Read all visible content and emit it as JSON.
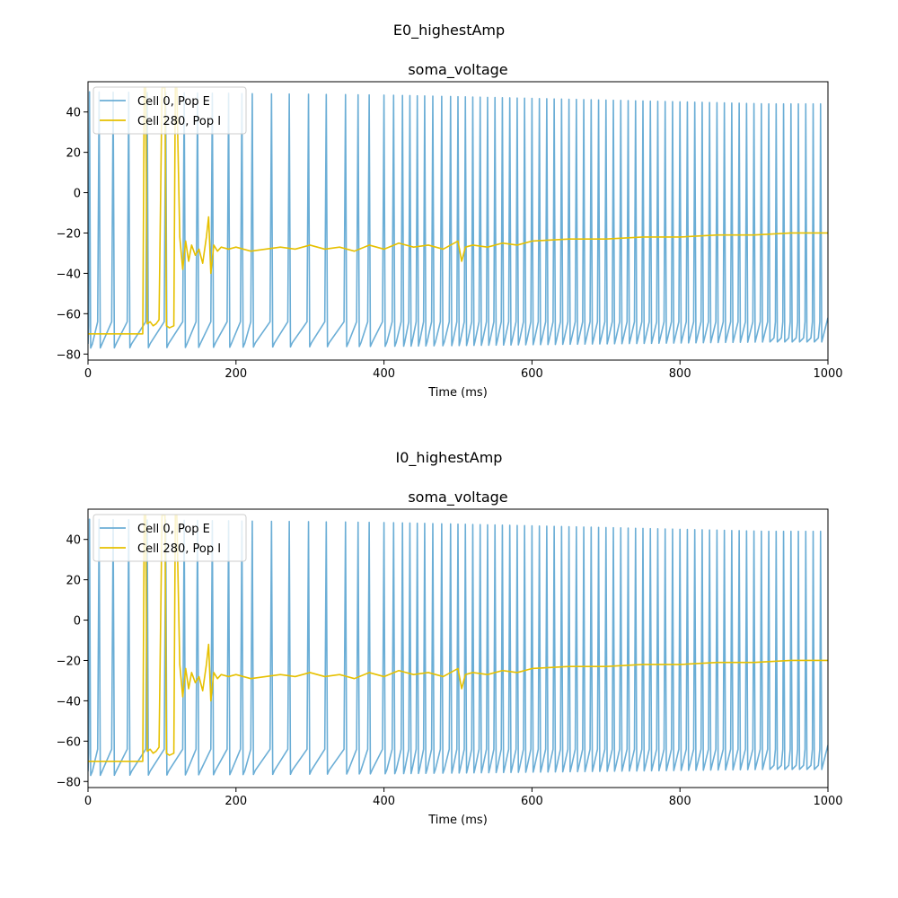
{
  "figures": [
    {
      "suptitle": "E0_highestAmp",
      "chart_data": {
        "type": "line",
        "title": "soma_voltage",
        "xlabel": "Time (ms)",
        "ylabel": "",
        "xlim": [
          0,
          1000
        ],
        "ylim": [
          -83,
          55
        ],
        "xticks": [
          0,
          200,
          400,
          600,
          800,
          1000
        ],
        "yticks": [
          -80,
          -60,
          -40,
          -20,
          0,
          20,
          40
        ],
        "grid": false,
        "legend_position": "top-left",
        "series": [
          {
            "name": "Cell 0, Pop E",
            "color": "#6baed6",
            "kind": "spikes",
            "spike_times": [
              2,
              15,
              34,
              55,
              80,
              105,
              130,
              148,
              168,
              190,
              208,
              222,
              248,
              272,
              298,
              322,
              348,
              365,
              380,
              400,
              413,
              425,
              435,
              445,
              455,
              466,
              478,
              490,
              500,
              510,
              520,
              530,
              540,
              550,
              560,
              570,
              580,
              590,
              600,
              610,
              620,
              630,
              640,
              650,
              660,
              670,
              680,
              690,
              700,
              710,
              720,
              730,
              740,
              750,
              760,
              770,
              780,
              790,
              800,
              810,
              820,
              830,
              840,
              850,
              860,
              870,
              880,
              890,
              900,
              910,
              920
            ],
            "peak_start": 50,
            "peak_end": 44,
            "trough_start": -77,
            "trough_end": -74
          },
          {
            "name": "Cell 280, Pop I",
            "color": "#e6c000",
            "kind": "trace",
            "x": [
              0,
              74,
              76,
              78,
              80,
              84,
              88,
              92,
              96,
              100,
              104,
              106,
              110,
              116,
              118,
              120,
              124,
              128,
              132,
              136,
              140,
              145,
              150,
              155,
              160,
              163,
              166,
              170,
              175,
              180,
              190,
              200,
              220,
              240,
              260,
              280,
              300,
              320,
              340,
              360,
              380,
              400,
              420,
              440,
              460,
              480,
              500,
              505,
              510,
              520,
              540,
              560,
              580,
              600,
              650,
              700,
              750,
              800,
              850,
              900,
              950,
              1000
            ],
            "y": [
              -70,
              -70,
              52,
              52,
              -65,
              -64,
              -66,
              -65,
              -63,
              52,
              52,
              -66,
              -67,
              -66,
              52,
              52,
              -22,
              -38,
              -24,
              -34,
              -26,
              -31,
              -28,
              -35,
              -22,
              -12,
              -40,
              -26,
              -29,
              -27,
              -28,
              -27,
              -29,
              -28,
              -27,
              -28,
              -26,
              -28,
              -27,
              -29,
              -26,
              -28,
              -25,
              -27,
              -26,
              -28,
              -24,
              -34,
              -27,
              -26,
              -27,
              -25,
              -26,
              -24,
              -23,
              -23,
              -22,
              -22,
              -21,
              -21,
              -20,
              -20
            ]
          }
        ]
      }
    },
    {
      "suptitle": "I0_highestAmp",
      "chart_data": {
        "type": "line",
        "title": "soma_voltage",
        "xlabel": "Time (ms)",
        "ylabel": "",
        "xlim": [
          0,
          1000
        ],
        "ylim": [
          -83,
          55
        ],
        "xticks": [
          0,
          200,
          400,
          600,
          800,
          1000
        ],
        "yticks": [
          -80,
          -60,
          -40,
          -20,
          0,
          20,
          40
        ],
        "grid": false,
        "legend_position": "top-left",
        "series": [
          {
            "name": "Cell 0, Pop E",
            "color": "#6baed6",
            "kind": "spikes",
            "spike_times": [
              2,
              15,
              34,
              55,
              80,
              105,
              130,
              148,
              168,
              190,
              208,
              222,
              248,
              272,
              298,
              322,
              348,
              365,
              380,
              400,
              413,
              425,
              435,
              445,
              455,
              466,
              478,
              490,
              500,
              510,
              520,
              530,
              540,
              550,
              560,
              570,
              580,
              590,
              600,
              610,
              620,
              630,
              640,
              650,
              660,
              670,
              680,
              690,
              700,
              710,
              720,
              730,
              740,
              750,
              760,
              770,
              780,
              790,
              800,
              810,
              820,
              830,
              840,
              850,
              860,
              870,
              880,
              890,
              900,
              910,
              920
            ],
            "peak_start": 50,
            "peak_end": 44,
            "trough_start": -77,
            "trough_end": -74
          },
          {
            "name": "Cell 280, Pop I",
            "color": "#e6c000",
            "kind": "trace",
            "x": [
              0,
              74,
              76,
              78,
              80,
              84,
              88,
              92,
              96,
              100,
              104,
              106,
              110,
              116,
              118,
              120,
              124,
              128,
              132,
              136,
              140,
              145,
              150,
              155,
              160,
              163,
              166,
              170,
              175,
              180,
              190,
              200,
              220,
              240,
              260,
              280,
              300,
              320,
              340,
              360,
              380,
              400,
              420,
              440,
              460,
              480,
              500,
              505,
              510,
              520,
              540,
              560,
              580,
              600,
              650,
              700,
              750,
              800,
              850,
              900,
              950,
              1000
            ],
            "y": [
              -70,
              -70,
              52,
              52,
              -65,
              -64,
              -66,
              -65,
              -63,
              52,
              52,
              -66,
              -67,
              -66,
              52,
              52,
              -22,
              -38,
              -24,
              -34,
              -26,
              -31,
              -28,
              -35,
              -22,
              -12,
              -40,
              -26,
              -29,
              -27,
              -28,
              -27,
              -29,
              -28,
              -27,
              -28,
              -26,
              -28,
              -27,
              -29,
              -26,
              -28,
              -25,
              -27,
              -26,
              -28,
              -24,
              -34,
              -27,
              -26,
              -27,
              -25,
              -26,
              -24,
              -23,
              -23,
              -22,
              -22,
              -21,
              -21,
              -20,
              -20
            ]
          }
        ]
      }
    }
  ]
}
